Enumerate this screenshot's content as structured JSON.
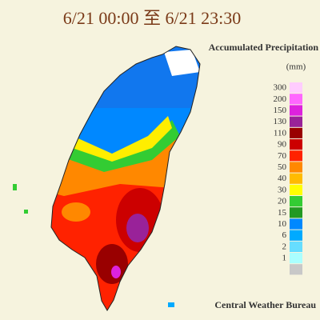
{
  "header": {
    "title": "6/21 00:00 至 6/21 23:30"
  },
  "legend": {
    "title": "Accumulated Precipitation",
    "unit": "(mm)",
    "items": [
      {
        "label": "300",
        "color": "#ffccff"
      },
      {
        "label": "200",
        "color": "#ff66ff"
      },
      {
        "label": "150",
        "color": "#dd22dd"
      },
      {
        "label": "130",
        "color": "#992299"
      },
      {
        "label": "110",
        "color": "#990000"
      },
      {
        "label": "90",
        "color": "#cc0000"
      },
      {
        "label": "70",
        "color": "#ff2200"
      },
      {
        "label": "50",
        "color": "#ff8800"
      },
      {
        "label": "40",
        "color": "#ffbb00"
      },
      {
        "label": "30",
        "color": "#ffff00"
      },
      {
        "label": "20",
        "color": "#33cc33"
      },
      {
        "label": "15",
        "color": "#229922"
      },
      {
        "label": "10",
        "color": "#0088ff"
      },
      {
        "label": "6",
        "color": "#00aaff"
      },
      {
        "label": "2",
        "color": "#66ddff"
      },
      {
        "label": "1",
        "color": "#aaffff"
      },
      {
        "label": "",
        "color": "#c8c8c8"
      }
    ]
  },
  "footer": {
    "credit": "Central Weather Bureau"
  }
}
